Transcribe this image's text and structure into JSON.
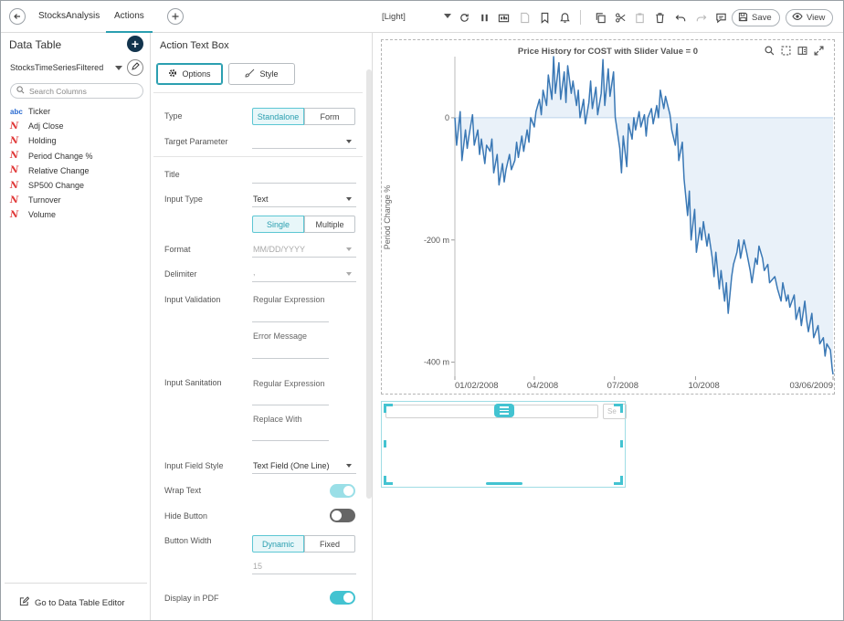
{
  "topbar": {
    "tabs": [
      {
        "label": "StocksAnalysis"
      },
      {
        "label": "Actions"
      }
    ],
    "theme": "[Light]",
    "save_label": "Save",
    "view_label": "View"
  },
  "left_panel": {
    "title": "Data Table",
    "datasource": "StocksTimeSeriesFiltered",
    "search_placeholder": "Search Columns",
    "columns": [
      {
        "type_icon": "abc",
        "label": "Ticker"
      },
      {
        "type_icon": "N",
        "label": "Adj Close"
      },
      {
        "type_icon": "N",
        "label": "Holding"
      },
      {
        "type_icon": "N",
        "label": "Period Change %"
      },
      {
        "type_icon": "N",
        "label": "Relative Change"
      },
      {
        "type_icon": "N",
        "label": "SP500 Change"
      },
      {
        "type_icon": "N",
        "label": "Turnover"
      },
      {
        "type_icon": "N",
        "label": "Volume"
      }
    ],
    "footer_link": "Go to Data Table Editor"
  },
  "settings_panel": {
    "title": "Action Text Box",
    "tabs": {
      "options": "Options",
      "style": "Style"
    },
    "type": {
      "label": "Type",
      "options": [
        "Standalone",
        "Form"
      ],
      "selected": "Standalone"
    },
    "target_parameter": {
      "label": "Target Parameter",
      "value": ""
    },
    "title_field": {
      "label": "Title",
      "value": ""
    },
    "input_type": {
      "label": "Input Type",
      "value": "Text",
      "modes": [
        "Single",
        "Multiple"
      ],
      "selected_mode": "Single"
    },
    "format": {
      "label": "Format",
      "value": "MM/DD/YYYY"
    },
    "delimiter": {
      "label": "Delimiter",
      "value": ","
    },
    "input_validation": {
      "label": "Input Validation",
      "regex_label": "Regular Expression",
      "error_label": "Error Message"
    },
    "input_sanitation": {
      "label": "Input Sanitation",
      "regex_label": "Regular Expression",
      "replace_label": "Replace With"
    },
    "input_field_style": {
      "label": "Input Field Style",
      "value": "Text Field (One Line)"
    },
    "wrap_text": {
      "label": "Wrap Text",
      "on": true
    },
    "hide_button": {
      "label": "Hide Button",
      "on": false
    },
    "button_width": {
      "label": "Button Width",
      "options": [
        "Dynamic",
        "Fixed"
      ],
      "selected": "Dynamic",
      "value": "15"
    },
    "display_in_pdf": {
      "label": "Display in PDF",
      "on": true
    }
  },
  "canvas": {
    "action_box_button": "Se",
    "colors": {
      "accent": "#43c3d1",
      "line": "#3a78b5",
      "area": "#e9f1f9",
      "brand_dark": "#12344d"
    }
  },
  "chart_data": {
    "type": "line",
    "title": "Price History for COST with Slider Value = 0",
    "ylabel": "Period Change %",
    "xlabel": "",
    "x_ticks": [
      "01/02/2008",
      "04/2008",
      "07/2008",
      "10/2008",
      "03/06/2009"
    ],
    "y_ticks": [
      "0",
      "-200 m",
      "-400 m"
    ],
    "y_tick_values": [
      0,
      -0.2,
      -0.4
    ],
    "ylim": [
      -0.42,
      0.1
    ],
    "x_range": [
      "2008-01-02",
      "2009-03-06"
    ],
    "fill_to_zero": true,
    "series": [
      {
        "x": [
          "2008-01-02",
          "2008-01-04",
          "2008-01-08",
          "2008-01-10",
          "2008-01-14",
          "2008-01-16",
          "2008-01-18",
          "2008-01-22",
          "2008-01-24",
          "2008-01-28",
          "2008-01-30",
          "2008-02-01",
          "2008-02-05",
          "2008-02-07",
          "2008-02-11",
          "2008-02-13",
          "2008-02-15",
          "2008-02-19",
          "2008-02-21",
          "2008-02-25",
          "2008-02-27",
          "2008-02-29",
          "2008-03-04",
          "2008-03-06",
          "2008-03-10",
          "2008-03-12",
          "2008-03-14",
          "2008-03-18",
          "2008-03-20",
          "2008-03-24",
          "2008-03-26",
          "2008-03-28",
          "2008-04-01",
          "2008-04-03",
          "2008-04-07",
          "2008-04-09",
          "2008-04-11",
          "2008-04-15",
          "2008-04-17",
          "2008-04-21",
          "2008-04-23",
          "2008-04-25",
          "2008-04-29",
          "2008-05-01",
          "2008-05-05",
          "2008-05-07",
          "2008-05-09",
          "2008-05-13",
          "2008-05-15",
          "2008-05-19",
          "2008-05-21",
          "2008-05-23",
          "2008-05-27",
          "2008-05-29",
          "2008-06-02",
          "2008-06-04",
          "2008-06-06",
          "2008-06-10",
          "2008-06-12",
          "2008-06-16",
          "2008-06-18",
          "2008-06-20",
          "2008-06-24",
          "2008-06-26",
          "2008-06-30",
          "2008-07-02",
          "2008-07-07",
          "2008-07-09",
          "2008-07-11",
          "2008-07-15",
          "2008-07-17",
          "2008-07-21",
          "2008-07-23",
          "2008-07-25",
          "2008-07-29",
          "2008-07-31",
          "2008-08-04",
          "2008-08-06",
          "2008-08-08",
          "2008-08-12",
          "2008-08-14",
          "2008-08-18",
          "2008-08-20",
          "2008-08-22",
          "2008-08-26",
          "2008-08-28",
          "2008-09-02",
          "2008-09-04",
          "2008-09-08",
          "2008-09-10",
          "2008-09-12",
          "2008-09-16",
          "2008-09-18",
          "2008-09-22",
          "2008-09-24",
          "2008-09-26",
          "2008-09-30",
          "2008-10-02",
          "2008-10-06",
          "2008-10-08",
          "2008-10-10",
          "2008-10-14",
          "2008-10-16",
          "2008-10-20",
          "2008-10-22",
          "2008-10-24",
          "2008-10-28",
          "2008-10-30",
          "2008-11-03",
          "2008-11-05",
          "2008-11-07",
          "2008-11-11",
          "2008-11-13",
          "2008-11-17",
          "2008-11-19",
          "2008-11-21",
          "2008-11-25",
          "2008-11-28",
          "2008-12-02",
          "2008-12-04",
          "2008-12-08",
          "2008-12-10",
          "2008-12-12",
          "2008-12-16",
          "2008-12-18",
          "2008-12-22",
          "2008-12-24",
          "2008-12-30",
          "2009-01-02",
          "2009-01-06",
          "2009-01-08",
          "2009-01-12",
          "2009-01-14",
          "2009-01-16",
          "2009-01-21",
          "2009-01-23",
          "2009-01-27",
          "2009-01-29",
          "2009-02-02",
          "2009-02-04",
          "2009-02-06",
          "2009-02-10",
          "2009-02-12",
          "2009-02-17",
          "2009-02-19",
          "2009-02-23",
          "2009-02-25",
          "2009-02-27",
          "2009-03-03",
          "2009-03-05",
          "2009-03-06"
        ],
        "y": [
          0.0,
          -0.045,
          0.01,
          -0.07,
          -0.02,
          -0.05,
          -0.03,
          0.005,
          -0.045,
          -0.02,
          -0.06,
          -0.035,
          -0.075,
          -0.045,
          -0.055,
          -0.035,
          -0.09,
          -0.06,
          -0.11,
          -0.075,
          -0.105,
          -0.085,
          -0.06,
          -0.085,
          -0.07,
          -0.04,
          -0.065,
          -0.03,
          -0.055,
          -0.02,
          -0.04,
          0.0,
          -0.015,
          0.01,
          0.03,
          0.005,
          0.045,
          0.02,
          0.07,
          0.03,
          0.1,
          0.04,
          0.09,
          0.03,
          0.075,
          0.025,
          0.085,
          0.04,
          0.06,
          0.02,
          0.045,
          0.0,
          0.03,
          -0.01,
          0.025,
          0.06,
          0.015,
          0.05,
          0.005,
          0.04,
          0.095,
          0.02,
          0.08,
          0.035,
          0.075,
          0.0,
          -0.05,
          -0.09,
          -0.03,
          -0.08,
          -0.01,
          -0.035,
          0.0,
          -0.02,
          0.01,
          -0.015,
          0.005,
          -0.03,
          0.0,
          0.015,
          -0.01,
          0.02,
          0.0,
          0.045,
          0.015,
          0.035,
          0.005,
          -0.02,
          -0.045,
          -0.01,
          -0.07,
          -0.04,
          -0.1,
          -0.16,
          -0.12,
          -0.2,
          -0.15,
          -0.22,
          -0.18,
          -0.2,
          -0.17,
          -0.21,
          -0.19,
          -0.23,
          -0.26,
          -0.22,
          -0.28,
          -0.25,
          -0.3,
          -0.27,
          -0.32,
          -0.26,
          -0.24,
          -0.22,
          -0.2,
          -0.23,
          -0.2,
          -0.22,
          -0.25,
          -0.27,
          -0.23,
          -0.24,
          -0.21,
          -0.23,
          -0.25,
          -0.24,
          -0.27,
          -0.26,
          -0.28,
          -0.3,
          -0.27,
          -0.3,
          -0.29,
          -0.31,
          -0.29,
          -0.33,
          -0.31,
          -0.34,
          -0.3,
          -0.33,
          -0.35,
          -0.32,
          -0.36,
          -0.34,
          -0.37,
          -0.36,
          -0.39,
          -0.37,
          -0.38,
          -0.41,
          -0.42
        ]
      }
    ]
  }
}
